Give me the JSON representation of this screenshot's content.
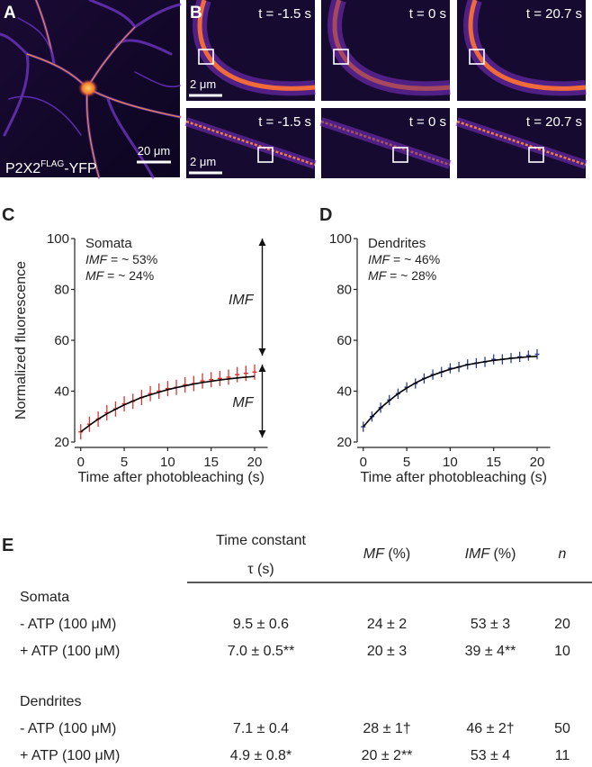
{
  "panel_a": {
    "letter": "A",
    "label": "P2X2",
    "label_sup": "FLAG",
    "label_suffix": "-YFP",
    "scale": "20 μm"
  },
  "panel_b": {
    "letter": "B",
    "rows": [
      {
        "times": [
          "t = -1.5 s",
          "t = 0 s",
          "t = 20.7 s"
        ],
        "scale": "2 μm"
      },
      {
        "times": [
          "t = -1.5 s",
          "t = 0 s",
          "t = 20.7 s"
        ],
        "scale": "2 μm"
      }
    ]
  },
  "chart_data": [
    {
      "type": "line",
      "letter": "C",
      "ylabel": "Normalized fluorescence",
      "xlabel": "Time after photobleaching (s)",
      "annotations": [
        {
          "text": "Somata"
        },
        {
          "italic": "IMF",
          "text": " = ~ 53%"
        },
        {
          "italic": "MF",
          "text": " = ~ 24%"
        }
      ],
      "arrow_labels": [
        "IMF",
        "MF"
      ],
      "x": [
        0,
        1,
        2,
        3,
        4,
        5,
        6,
        7,
        8,
        9,
        10,
        11,
        12,
        13,
        14,
        15,
        16,
        17,
        18,
        19,
        20
      ],
      "series": [
        {
          "color": "#e0312f",
          "values": [
            24,
            27,
            29,
            31.5,
            33,
            35,
            36,
            37.5,
            39,
            40,
            41,
            41.5,
            42.5,
            43,
            44,
            44.5,
            45,
            45.5,
            46.5,
            47,
            47.5
          ],
          "errors": [
            3,
            3,
            3,
            3,
            3,
            3,
            3,
            3,
            3,
            3,
            3,
            3,
            3,
            3,
            3,
            3,
            3,
            3,
            3,
            3,
            3
          ]
        },
        {
          "color": "#000000",
          "values": [
            24,
            26.6,
            29.0,
            31.1,
            32.9,
            34.6,
            36.1,
            37.5,
            38.6,
            39.6,
            40.6,
            41.4,
            42.1,
            42.8,
            43.4,
            43.9,
            44.4,
            44.8,
            45.2,
            45.5,
            45.8
          ]
        }
      ],
      "xlim": [
        -0.7,
        21.5
      ],
      "xticks": [
        0,
        5,
        10,
        15,
        20
      ],
      "ylim": [
        20,
        100
      ],
      "yticks": [
        20,
        40,
        60,
        80,
        100
      ]
    },
    {
      "type": "line",
      "letter": "D",
      "xlabel": "Time after photobleaching (s)",
      "annotations": [
        {
          "text": "Dendrites"
        },
        {
          "italic": "IMF",
          "text": " = ~ 46%"
        },
        {
          "italic": "MF",
          "text": " = ~ 28%"
        }
      ],
      "x": [
        0,
        1,
        2,
        3,
        4,
        5,
        6,
        7,
        8,
        9,
        10,
        11,
        12,
        13,
        14,
        15,
        16,
        17,
        18,
        19,
        20
      ],
      "series": [
        {
          "color": "#2b3f91",
          "values": [
            26,
            30,
            33.5,
            36.5,
            39,
            41.5,
            43,
            45,
            46.5,
            47.5,
            49,
            49.5,
            50.5,
            51,
            51.5,
            52.5,
            52.5,
            53,
            53.5,
            54,
            54.5
          ],
          "errors": [
            2,
            2,
            2,
            2,
            2,
            2,
            2,
            2,
            2,
            2,
            2,
            2,
            2,
            2,
            2,
            2,
            2,
            2,
            2,
            2,
            2
          ]
        },
        {
          "color": "#000000",
          "values": [
            26,
            29.9,
            33.4,
            36.3,
            39.0,
            41.2,
            43.2,
            44.9,
            46.3,
            47.5,
            48.6,
            49.5,
            50.4,
            51.0,
            51.6,
            52.1,
            52.5,
            52.9,
            53.2,
            53.5,
            53.7
          ]
        }
      ],
      "xlim": [
        -0.7,
        21.5
      ],
      "xticks": [
        0,
        5,
        10,
        15,
        20
      ],
      "ylim": [
        20,
        100
      ],
      "yticks": [
        20,
        40,
        60,
        80,
        100
      ]
    }
  ],
  "table": {
    "letter": "E",
    "header": {
      "tau": [
        "Time constant",
        "τ (s)"
      ],
      "mf": {
        "italic": "MF",
        "text": " (%)"
      },
      "imf": {
        "italic": "IMF",
        "text": " (%)"
      },
      "n": "n"
    },
    "groups": [
      {
        "name": "Somata",
        "rows": [
          [
            "- ATP (100 μM)",
            "9.5 ± 0.6",
            "24 ± 2",
            "53 ± 3",
            "20"
          ],
          [
            "+ ATP (100 μM)",
            "7.0 ± 0.5**",
            "20 ± 3",
            "39 ± 4**",
            "10"
          ]
        ]
      },
      {
        "name": "Dendrites",
        "rows": [
          [
            "- ATP (100 μM)",
            "7.1 ± 0.4",
            "28 ± 1†",
            "46 ± 2†",
            "50"
          ],
          [
            "+ ATP (100 μM)",
            "4.9 ± 0.8*",
            "20 ± 2**",
            "53 ± 4",
            "11"
          ]
        ]
      }
    ]
  }
}
